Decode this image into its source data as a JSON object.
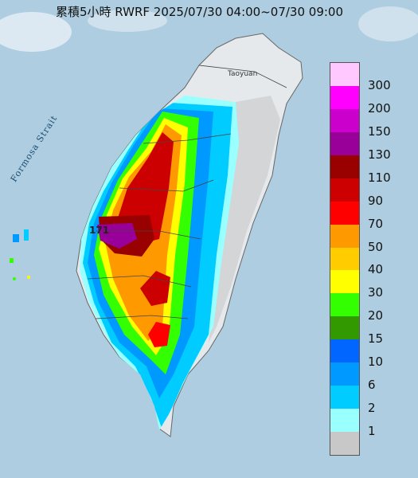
{
  "title": "累積5小時 RWRF 2025/07/30 04:00~07/30 09:00",
  "map_labels": {
    "strait": "Formosa Strait",
    "city": "Taoyuan",
    "peak_value": "171"
  },
  "legend": {
    "ticks": [
      "300",
      "200",
      "150",
      "130",
      "110",
      "90",
      "70",
      "50",
      "40",
      "30",
      "20",
      "15",
      "10",
      "6",
      "2",
      "1"
    ],
    "colors": [
      "#ffc8ff",
      "#ff00ff",
      "#cc00cc",
      "#990099",
      "#990000",
      "#cc0000",
      "#ff0000",
      "#ff9900",
      "#ffcc00",
      "#ffff00",
      "#33ff00",
      "#339900",
      "#0066ff",
      "#0099ff",
      "#00ccff",
      "#99ffff",
      "#c8c8c8"
    ]
  },
  "colors": {
    "sea": "#aecde0",
    "land": "#e6e9ec",
    "no_rain": "#c8c8c8"
  }
}
